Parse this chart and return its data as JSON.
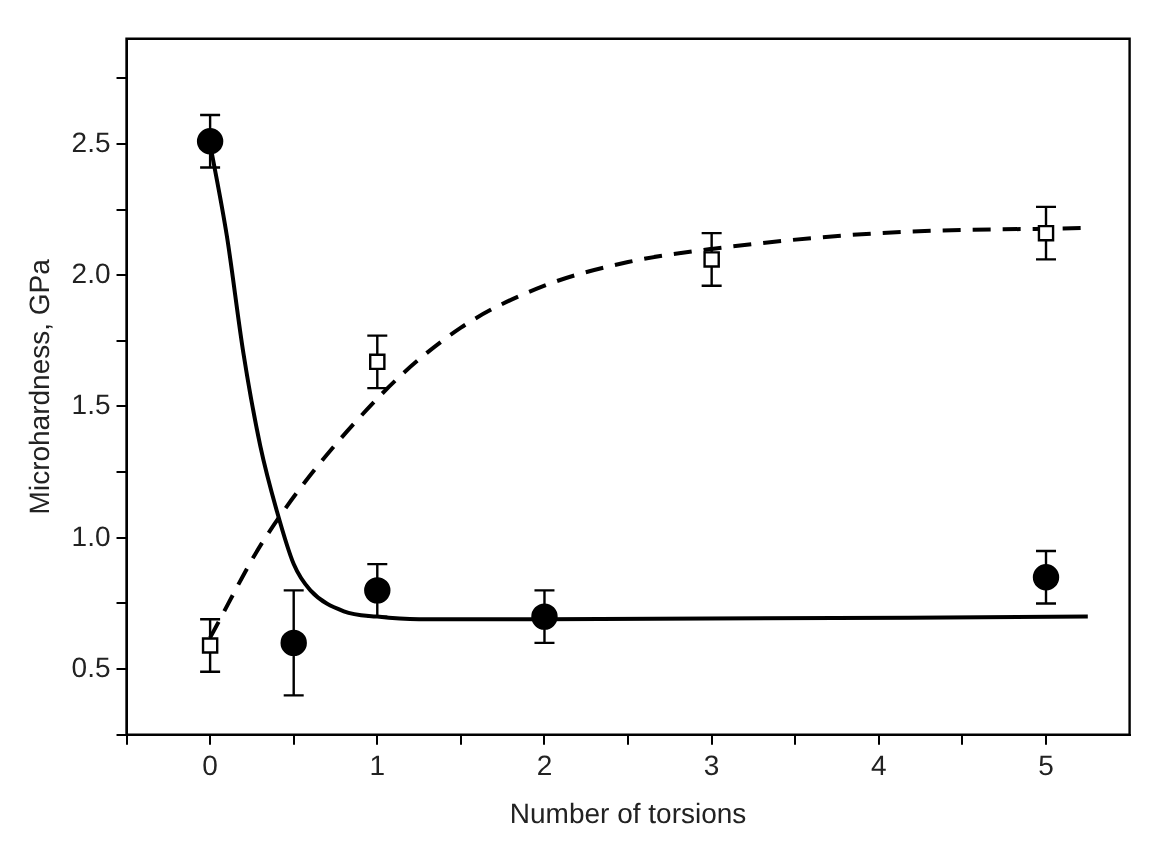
{
  "chart_data": {
    "type": "scatter",
    "xlabel": "Number of torsions",
    "ylabel": "Microhardness, GPa",
    "xlim": [
      -0.5,
      5.5
    ],
    "ylim": [
      0.25,
      2.9
    ],
    "xticks": [
      {
        "value": -0.5,
        "label": null
      },
      0,
      {
        "value": 0.5,
        "label": null
      },
      1,
      {
        "value": 1.5,
        "label": null
      },
      2,
      {
        "value": 2.5,
        "label": null
      },
      3,
      {
        "value": 3.5,
        "label": null
      },
      4,
      {
        "value": 4.5,
        "label": null
      },
      5
    ],
    "yticks": [
      {
        "value": 0.25,
        "label": null
      },
      0.5,
      {
        "value": 0.75,
        "label": null
      },
      {
        "value": 1,
        "label": "1.0"
      },
      {
        "value": 1.25,
        "label": null
      },
      1.5,
      {
        "value": 1.75,
        "label": null
      },
      {
        "value": 2,
        "label": "2.0"
      },
      {
        "value": 2.25,
        "label": null
      },
      2.5,
      {
        "value": 2.75,
        "label": null
      }
    ],
    "grid": false,
    "legend": false,
    "series": [
      {
        "type": "scatter",
        "marker": "circle",
        "color": "#000000",
        "x": [
          0,
          0.5,
          1,
          2,
          5
        ],
        "values": [
          2.51,
          0.6,
          0.8,
          0.7,
          0.85
        ],
        "errors": [
          0.1,
          0.2,
          0.1,
          0.1,
          0.1
        ]
      },
      {
        "type": "scatter",
        "marker": "square",
        "color": "#000000",
        "x": [
          0,
          1,
          3,
          5
        ],
        "values": [
          0.59,
          1.67,
          2.06,
          2.16
        ],
        "errors": [
          0.1,
          0.1,
          0.1,
          0.1
        ]
      },
      {
        "type": "line",
        "line_style": "solid",
        "marker": "none",
        "color": "#000000",
        "x": [
          0,
          0.1,
          0.2,
          0.3,
          0.4,
          0.5,
          0.6,
          0.8,
          1.0,
          1.25,
          2,
          5.25
        ],
        "values": [
          2.5,
          2.15,
          1.7,
          1.35,
          1.1,
          0.9,
          0.8,
          0.72,
          0.7,
          0.69,
          0.69,
          0.7
        ]
      },
      {
        "type": "line",
        "line_style": "dashed",
        "marker": "none",
        "color": "#000000",
        "x": [
          0,
          0.33,
          1,
          1.5,
          2,
          2.5,
          3,
          4,
          5.25
        ],
        "values": [
          0.62,
          1.0,
          1.53,
          1.8,
          1.96,
          2.05,
          2.1,
          2.16,
          2.18
        ]
      }
    ]
  }
}
